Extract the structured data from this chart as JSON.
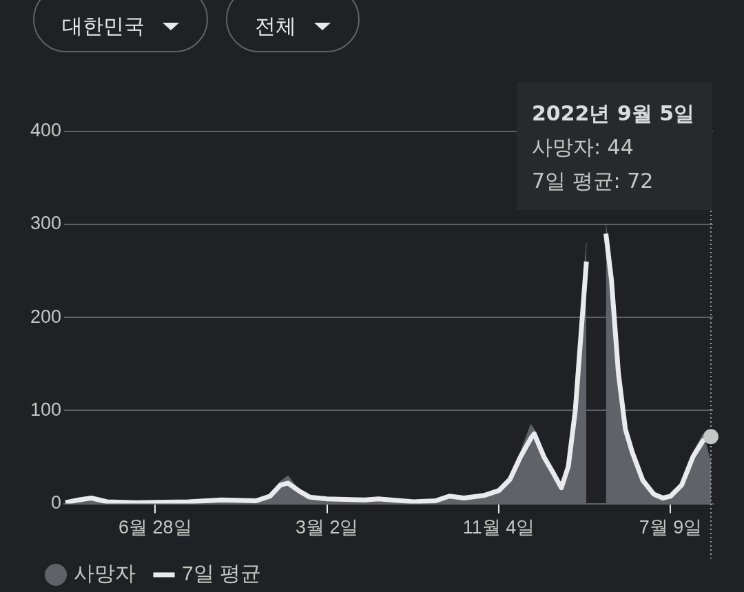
{
  "chart_data": {
    "type": "area",
    "x": [
      "2020-02-20",
      "2020-03-10",
      "2020-03-28",
      "2020-04-20",
      "2020-06-01",
      "2020-08-15",
      "2020-10-01",
      "2020-11-20",
      "2020-12-10",
      "2020-12-25",
      "2021-01-05",
      "2021-01-20",
      "2021-02-05",
      "2021-03-02",
      "2021-04-25",
      "2021-05-15",
      "2021-07-05",
      "2021-08-05",
      "2021-08-25",
      "2021-09-15",
      "2021-10-15",
      "2021-11-04",
      "2021-11-20",
      "2021-12-05",
      "2021-12-20",
      "2021-12-25",
      "2022-01-08",
      "2022-01-22",
      "2022-02-02",
      "2022-02-12",
      "2022-02-22",
      "2022-03-02",
      "2022-03-10",
      "2022-03-14",
      "2022-03-22",
      "2022-03-30",
      "2022-04-07",
      "2022-04-15",
      "2022-04-25",
      "2022-05-05",
      "2022-05-15",
      "2022-05-30",
      "2022-06-15",
      "2022-06-28",
      "2022-07-09",
      "2022-07-25",
      "2022-08-10",
      "2022-08-25",
      "2022-09-05"
    ],
    "series": [
      {
        "name": "사망자",
        "color": "#5f6368",
        "values": [
          0,
          5,
          8,
          3,
          1,
          2,
          4,
          3,
          10,
          24,
          30,
          15,
          6,
          5,
          4,
          6,
          2,
          3,
          10,
          6,
          9,
          16,
          30,
          55,
          85,
          80,
          55,
          35,
          20,
          45,
          110,
          200,
          280,
          null,
          null,
          null,
          300,
          250,
          150,
          85,
          60,
          28,
          12,
          7,
          9,
          22,
          55,
          75,
          44
        ]
      },
      {
        "name": "7일 평균",
        "type": "line",
        "color": "#e8eaed",
        "values": [
          1,
          4,
          6,
          2,
          1,
          2,
          4,
          3,
          8,
          20,
          22,
          14,
          7,
          5,
          4,
          5,
          2,
          3,
          8,
          6,
          9,
          14,
          26,
          50,
          70,
          75,
          50,
          32,
          17,
          40,
          100,
          180,
          260,
          null,
          null,
          null,
          290,
          240,
          140,
          80,
          55,
          25,
          10,
          6,
          8,
          20,
          50,
          68,
          72
        ]
      }
    ],
    "xlim": [
      "2020-02-18",
      "2022-09-08"
    ],
    "xticks": [
      {
        "value": "2020-06-28",
        "label": "6월 28일"
      },
      {
        "value": "2021-03-02",
        "label": "3월 2일"
      },
      {
        "value": "2021-11-04",
        "label": "11월 4일"
      },
      {
        "value": "2022-07-09",
        "label": "7월 9일"
      }
    ],
    "ylim": [
      0,
      430
    ],
    "yticks": [
      0,
      100,
      200,
      300,
      400
    ],
    "grid": "y",
    "legend": "bottom left",
    "ref_lines": [
      {
        "axis": "x",
        "value": "2022-09-05",
        "line_style": "dotted",
        "color": "#9aa0a6"
      }
    ],
    "annotations": [
      "대한민국",
      "전체",
      "2022년 9월 5일",
      "사망자: 44",
      "7일 평균: 72"
    ]
  }
}
